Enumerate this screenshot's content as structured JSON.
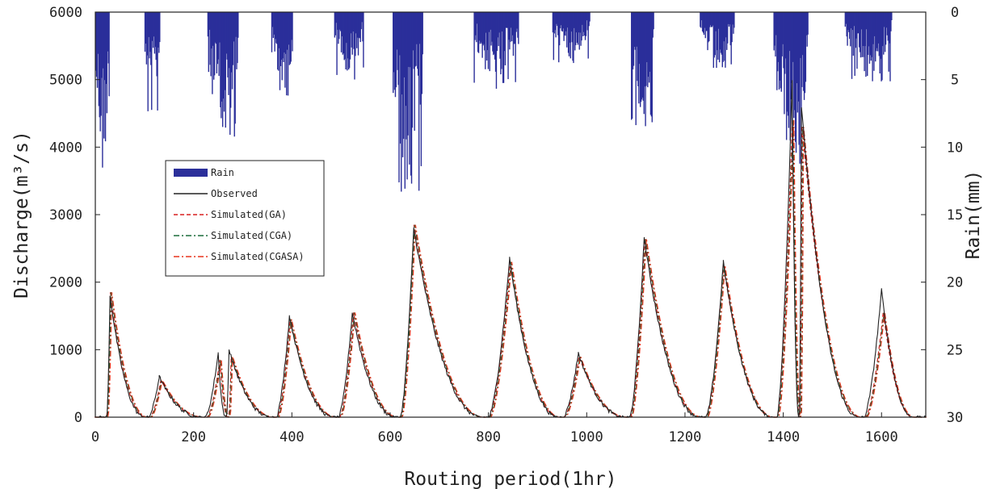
{
  "chart_data": {
    "type": "line",
    "xlabel": "Routing period(1hr)",
    "ylabel_left": "Discharge(m³/s)",
    "ylabel_right": "Rain(mm)",
    "xlim": [
      0,
      1690
    ],
    "ylim_left": [
      0,
      6000
    ],
    "ylim_right": [
      30,
      0
    ],
    "x_ticks": [
      0,
      200,
      400,
      600,
      800,
      1000,
      1200,
      1400,
      1600
    ],
    "y_left_ticks": [
      0,
      1000,
      2000,
      3000,
      4000,
      5000,
      6000
    ],
    "y_right_ticks": [
      0,
      5,
      10,
      15,
      20,
      25,
      30
    ],
    "grid": false,
    "legend_position": "upper-left",
    "legend": [
      {
        "label": "Rain",
        "style": "bar",
        "color": "#2b2f9a"
      },
      {
        "label": "Observed",
        "style": "solid",
        "color": "#222222"
      },
      {
        "label": "Simulated(GA)",
        "style": "dashed",
        "color": "#d81e1e"
      },
      {
        "label": "Simulated(CGA)",
        "style": "dashdot",
        "color": "#1a6b3a"
      },
      {
        "label": "Simulated(CGASA)",
        "style": "dashdot",
        "color": "#e8331d"
      }
    ],
    "observed_peaks": [
      {
        "x": 0,
        "y": 0
      },
      {
        "x": 30,
        "y": 1800
      },
      {
        "x": 130,
        "y": 600
      },
      {
        "x": 250,
        "y": 950
      },
      {
        "x": 272,
        "y": 1000
      },
      {
        "x": 395,
        "y": 1500
      },
      {
        "x": 523,
        "y": 1550
      },
      {
        "x": 648,
        "y": 2800
      },
      {
        "x": 843,
        "y": 2350
      },
      {
        "x": 983,
        "y": 950
      },
      {
        "x": 1117,
        "y": 2650
      },
      {
        "x": 1278,
        "y": 2300
      },
      {
        "x": 1418,
        "y": 5000
      },
      {
        "x": 1437,
        "y": 4600
      },
      {
        "x": 1600,
        "y": 1880
      },
      {
        "x": 1690,
        "y": 0
      }
    ],
    "simulated_peaks": [
      {
        "x": 0,
        "y": 0
      },
      {
        "x": 32,
        "y": 1850
      },
      {
        "x": 135,
        "y": 550
      },
      {
        "x": 255,
        "y": 850
      },
      {
        "x": 278,
        "y": 900
      },
      {
        "x": 398,
        "y": 1450
      },
      {
        "x": 527,
        "y": 1550
      },
      {
        "x": 650,
        "y": 2850
      },
      {
        "x": 846,
        "y": 2300
      },
      {
        "x": 986,
        "y": 900
      },
      {
        "x": 1120,
        "y": 2650
      },
      {
        "x": 1280,
        "y": 2250
      },
      {
        "x": 1420,
        "y": 4400
      },
      {
        "x": 1440,
        "y": 4300
      },
      {
        "x": 1605,
        "y": 1560
      },
      {
        "x": 1690,
        "y": 0
      }
    ],
    "rain_events": [
      {
        "start": 0,
        "end": 28,
        "max_mm": 13.0
      },
      {
        "start": 100,
        "end": 130,
        "max_mm": 8.0
      },
      {
        "start": 228,
        "end": 290,
        "max_mm": 10.0
      },
      {
        "start": 358,
        "end": 400,
        "max_mm": 7.0
      },
      {
        "start": 486,
        "end": 545,
        "max_mm": 5.0
      },
      {
        "start": 605,
        "end": 665,
        "max_mm": 13.5
      },
      {
        "start": 770,
        "end": 860,
        "max_mm": 6.0
      },
      {
        "start": 930,
        "end": 1005,
        "max_mm": 3.8
      },
      {
        "start": 1090,
        "end": 1135,
        "max_mm": 8.5
      },
      {
        "start": 1230,
        "end": 1300,
        "max_mm": 4.5
      },
      {
        "start": 1380,
        "end": 1450,
        "max_mm": 11.5
      },
      {
        "start": 1525,
        "end": 1620,
        "max_mm": 5.2
      }
    ]
  }
}
